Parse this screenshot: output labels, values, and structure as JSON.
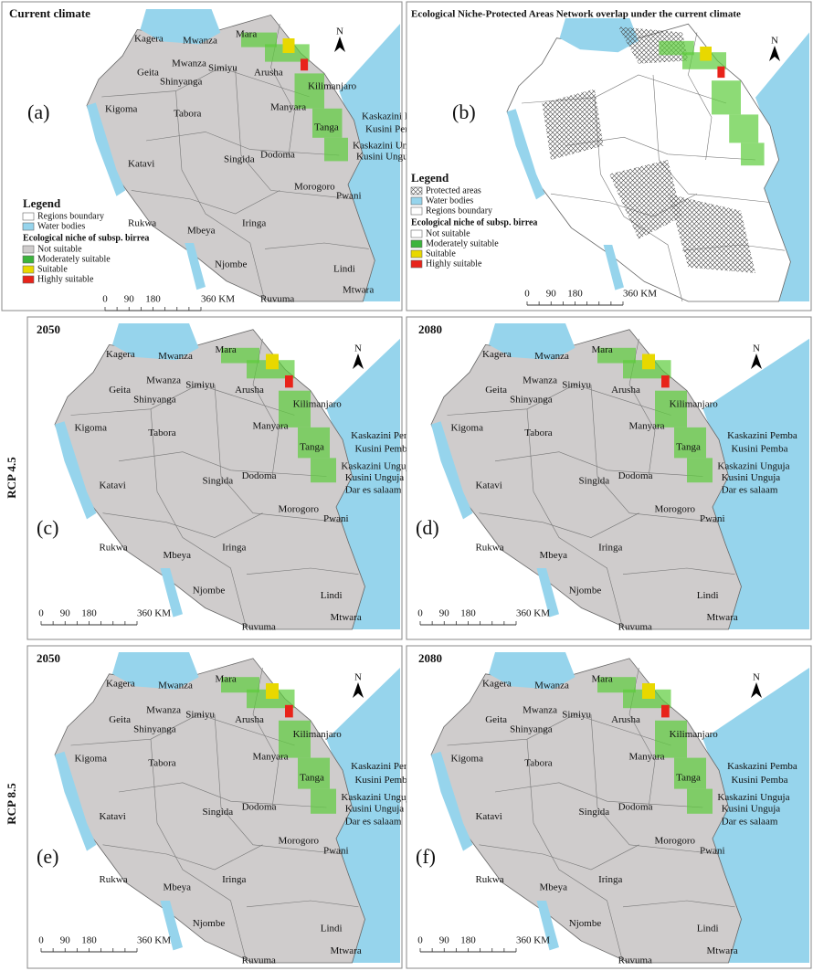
{
  "panels": [
    {
      "title": "Current climate",
      "letter": "(a)"
    },
    {
      "title": "Ecological Niche-Protected Areas Network overlap under the current climate",
      "letter": "(b)"
    },
    {
      "title": "2050",
      "letter": "(c)"
    },
    {
      "title": "2080",
      "letter": "(d)"
    },
    {
      "title": "2050",
      "letter": "(e)"
    },
    {
      "title": "2080",
      "letter": "(f)"
    }
  ],
  "side_labels": [
    "RCP 4.5",
    "RCP 8.5"
  ],
  "north": "N",
  "scale_labels": [
    "0",
    "90",
    "180",
    "360 KM"
  ],
  "regions": [
    "Kagera",
    "Mwanza",
    "Mwanza",
    "Geita",
    "Simiyu",
    "Shinyanga",
    "Mara",
    "Arusha",
    "Kilimanjaro",
    "Manyara",
    "Kaskazini Pemba",
    "Tanga",
    "Kusini Pemba",
    "Kaskazini Unguja",
    "Kusini Unguja",
    "Dar es salaam",
    "Morogoro",
    "Pwani",
    "Kigoma",
    "Tabora",
    "Katavi",
    "Singida",
    "Dodoma",
    "Rukwa",
    "Mbeya",
    "Iringa",
    "Njombe",
    "Lindi",
    "Ruvuma",
    "Mtwara"
  ],
  "legend_a": {
    "title": "Legend",
    "items": [
      "Regions boundary",
      "Water bodies"
    ],
    "subtitle": "Ecological niche of subsp. birrea",
    "classes": [
      "Not suitable",
      "Moderately suitable",
      "Suitable",
      "Highly suitable"
    ]
  },
  "legend_b": {
    "title": "Legend",
    "items": [
      "Protected areas",
      "Water bodies",
      "Regions boundary"
    ],
    "subtitle": "Ecological niche of subsp. birrea",
    "classes": [
      "Not suitable",
      "Moderately suitable",
      "Suitable",
      "Highly suitable"
    ]
  }
}
